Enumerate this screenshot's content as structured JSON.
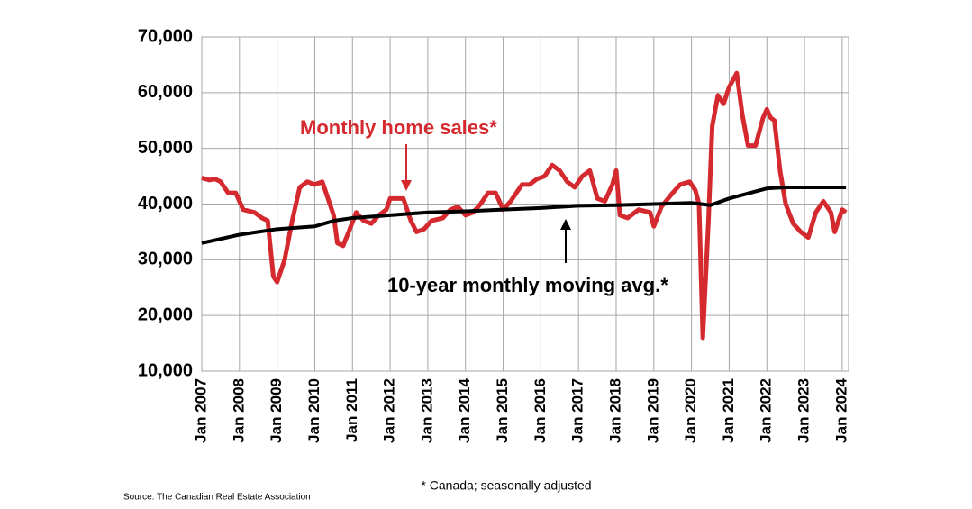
{
  "chart_data": {
    "type": "line",
    "xlim": [
      2007,
      2024.17
    ],
    "ylim": [
      10000,
      70000
    ],
    "yticks": [
      {
        "value": 10000,
        "label": "10,000"
      },
      {
        "value": 20000,
        "label": "20,000"
      },
      {
        "value": 30000,
        "label": "30,000"
      },
      {
        "value": 40000,
        "label": "40,000"
      },
      {
        "value": 50000,
        "label": "50,000"
      },
      {
        "value": 60000,
        "label": "60,000"
      },
      {
        "value": 70000,
        "label": "70,000"
      }
    ],
    "xticks": [
      {
        "value": 2007,
        "label": "Jan 2007"
      },
      {
        "value": 2008,
        "label": "Jan 2008"
      },
      {
        "value": 2009,
        "label": "Jan 2009"
      },
      {
        "value": 2010,
        "label": "Jan 2010"
      },
      {
        "value": 2011,
        "label": "Jan 2011"
      },
      {
        "value": 2012,
        "label": "Jan 2012"
      },
      {
        "value": 2013,
        "label": "Jan 2013"
      },
      {
        "value": 2014,
        "label": "Jan 2014"
      },
      {
        "value": 2015,
        "label": "Jan 2015"
      },
      {
        "value": 2016,
        "label": "Jan 2016"
      },
      {
        "value": 2017,
        "label": "Jan 2017"
      },
      {
        "value": 2018,
        "label": "Jan 2018"
      },
      {
        "value": 2019,
        "label": "Jan 2019"
      },
      {
        "value": 2020,
        "label": "Jan 2020"
      },
      {
        "value": 2021,
        "label": "Jan 2021"
      },
      {
        "value": 2022,
        "label": "Jan 2022"
      },
      {
        "value": 2023,
        "label": "Jan 2023"
      },
      {
        "value": 2024,
        "label": "Jan 2024"
      }
    ],
    "grid": true,
    "series": [
      {
        "name": "Monthly home sales*",
        "color": "#d42a2f",
        "x": [
          2007.0,
          2007.2,
          2007.35,
          2007.5,
          2007.7,
          2007.9,
          2008.1,
          2008.4,
          2008.6,
          2008.75,
          2008.9,
          2009.0,
          2009.2,
          2009.4,
          2009.6,
          2009.8,
          2010.0,
          2010.2,
          2010.35,
          2010.5,
          2010.6,
          2010.75,
          2010.9,
          2011.1,
          2011.3,
          2011.5,
          2011.7,
          2011.9,
          2012.0,
          2012.2,
          2012.35,
          2012.55,
          2012.7,
          2012.9,
          2013.1,
          2013.4,
          2013.6,
          2013.8,
          2014.0,
          2014.2,
          2014.4,
          2014.6,
          2014.8,
          2015.0,
          2015.2,
          2015.5,
          2015.7,
          2015.9,
          2016.1,
          2016.3,
          2016.5,
          2016.7,
          2016.9,
          2017.1,
          2017.3,
          2017.5,
          2017.7,
          2017.9,
          2018.0,
          2018.1,
          2018.3,
          2018.6,
          2018.9,
          2019.0,
          2019.2,
          2019.5,
          2019.7,
          2019.95,
          2020.1,
          2020.2,
          2020.3,
          2020.45,
          2020.55,
          2020.7,
          2020.85,
          2021.0,
          2021.2,
          2021.35,
          2021.5,
          2021.7,
          2021.9,
          2022.0,
          2022.1,
          2022.2,
          2022.35,
          2022.5,
          2022.7,
          2022.9,
          2023.1,
          2023.3,
          2023.5,
          2023.7,
          2023.8,
          2024.0,
          2024.1
        ],
        "values": [
          44700,
          44300,
          44500,
          44000,
          42000,
          42000,
          39000,
          38500,
          37500,
          37000,
          27000,
          26000,
          30000,
          37000,
          43000,
          44000,
          43500,
          44000,
          41000,
          38000,
          33000,
          32500,
          35000,
          38500,
          37000,
          36500,
          38000,
          39000,
          41000,
          41000,
          41000,
          37000,
          35000,
          35500,
          37000,
          37500,
          39000,
          39500,
          38000,
          38500,
          40000,
          42000,
          42000,
          39000,
          40500,
          43500,
          43500,
          44500,
          45000,
          47000,
          46000,
          44000,
          43000,
          45000,
          46000,
          41000,
          40500,
          43500,
          46000,
          38000,
          37500,
          39000,
          38500,
          36000,
          39500,
          42000,
          43500,
          44000,
          42500,
          40000,
          16000,
          37000,
          54000,
          59500,
          58000,
          61000,
          63500,
          56000,
          50500,
          50500,
          55500,
          57000,
          55500,
          55000,
          46000,
          40000,
          36500,
          35000,
          34000,
          38500,
          40500,
          38500,
          35000,
          39000,
          38500
        ]
      },
      {
        "name": "10-year monthly moving avg.*",
        "color": "#000000",
        "x": [
          2007,
          2008,
          2009,
          2010,
          2010.5,
          2011,
          2012,
          2013,
          2014,
          2015,
          2016,
          2017,
          2018,
          2019,
          2020,
          2020.5,
          2021,
          2022,
          2022.5,
          2023,
          2024.1
        ],
        "values": [
          33000,
          34500,
          35500,
          36000,
          37000,
          37500,
          38000,
          38500,
          38700,
          39000,
          39300,
          39700,
          39800,
          40000,
          40200,
          39800,
          41000,
          42800,
          43000,
          43000,
          43000
        ]
      }
    ],
    "footnote": "* Canada; seasonally adjusted",
    "source": "Source: The Canadian Real Estate Association"
  }
}
